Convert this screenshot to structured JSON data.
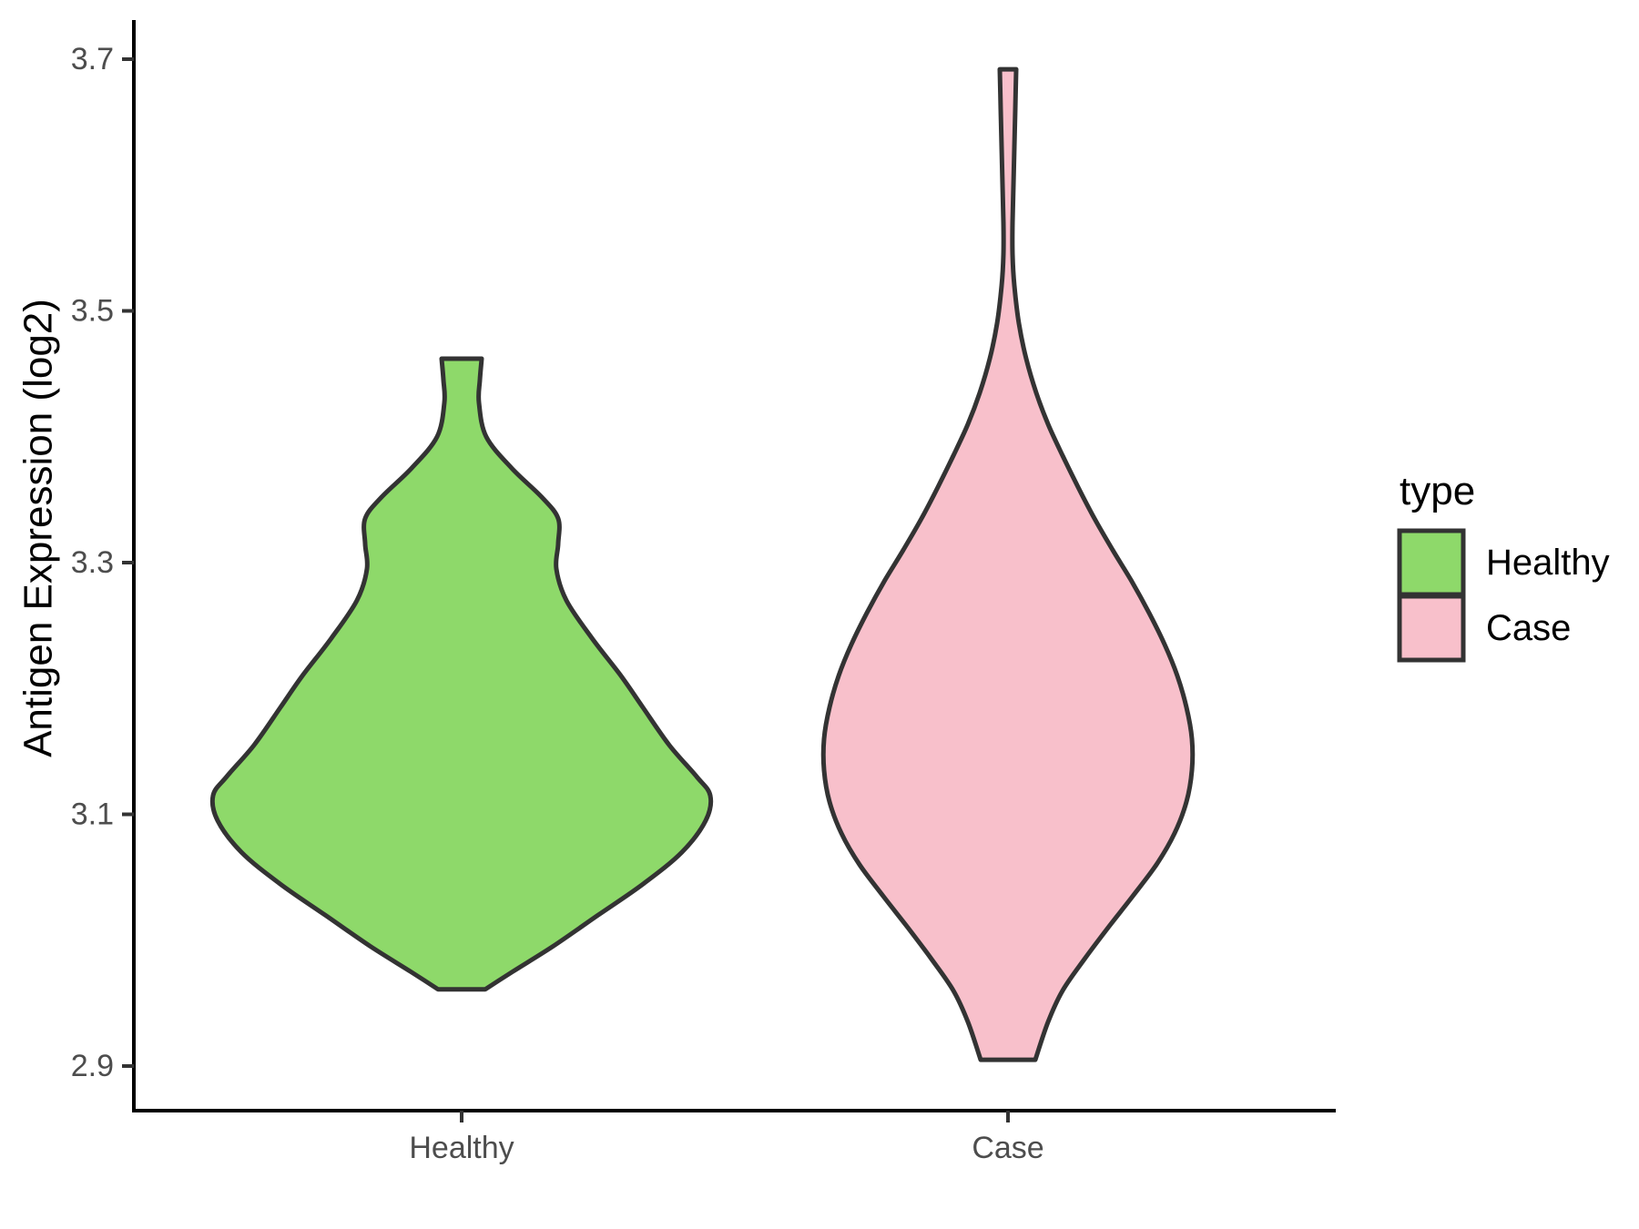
{
  "chart_data": {
    "type": "violin",
    "title": "",
    "xlabel": "",
    "ylabel": "Antigen Expression (log2)",
    "categories": [
      "Healthy",
      "Case"
    ],
    "y_axis": {
      "ticks": [
        3.7,
        3.5,
        3.3,
        3.1,
        2.9
      ],
      "tick_labels": [
        "3.7",
        "3.5",
        "3.3",
        "3.1",
        "2.9"
      ],
      "range_shown": [
        2.86,
        3.72
      ],
      "grid": false
    },
    "legend": {
      "title": "type",
      "position": "right",
      "entries": [
        {
          "label": "Healthy",
          "fill": "#8ED96A"
        },
        {
          "label": "Case",
          "fill": "#F8C0CB"
        }
      ]
    },
    "series": [
      {
        "name": "Healthy",
        "fill": "#8ED96A",
        "min_value": 2.96,
        "max_value": 3.46,
        "widest_at": 3.11,
        "profile_format": "[expression_value_log2, density_halfwidth_px]",
        "profile": [
          [
            3.462,
            22
          ],
          [
            3.445,
            20
          ],
          [
            3.427,
            19
          ],
          [
            3.4,
            27
          ],
          [
            3.375,
            55
          ],
          [
            3.352,
            88
          ],
          [
            3.335,
            106
          ],
          [
            3.315,
            106
          ],
          [
            3.295,
            104
          ],
          [
            3.27,
            115
          ],
          [
            3.24,
            143
          ],
          [
            3.21,
            175
          ],
          [
            3.185,
            199
          ],
          [
            3.155,
            228
          ],
          [
            3.13,
            258
          ],
          [
            3.115,
            273
          ],
          [
            3.095,
            268
          ],
          [
            3.07,
            242
          ],
          [
            3.045,
            200
          ],
          [
            3.02,
            150
          ],
          [
            2.995,
            100
          ],
          [
            2.975,
            56
          ],
          [
            2.961,
            26
          ]
        ]
      },
      {
        "name": "Case",
        "fill": "#F8C0CB",
        "min_value": 2.905,
        "max_value": 3.69,
        "widest_at": 3.15,
        "profile_format": "[expression_value_log2, density_halfwidth_px]",
        "profile": [
          [
            3.692,
            9
          ],
          [
            3.66,
            8
          ],
          [
            3.63,
            7
          ],
          [
            3.6,
            6
          ],
          [
            3.57,
            5
          ],
          [
            3.545,
            5
          ],
          [
            3.52,
            7
          ],
          [
            3.49,
            12
          ],
          [
            3.462,
            20
          ],
          [
            3.435,
            31
          ],
          [
            3.41,
            44
          ],
          [
            3.385,
            60
          ],
          [
            3.36,
            77
          ],
          [
            3.335,
            95
          ],
          [
            3.31,
            115
          ],
          [
            3.285,
            136
          ],
          [
            3.26,
            155
          ],
          [
            3.235,
            172
          ],
          [
            3.21,
            186
          ],
          [
            3.185,
            196
          ],
          [
            3.16,
            202
          ],
          [
            3.135,
            202
          ],
          [
            3.11,
            196
          ],
          [
            3.085,
            183
          ],
          [
            3.06,
            163
          ],
          [
            3.035,
            137
          ],
          [
            3.01,
            110
          ],
          [
            2.985,
            84
          ],
          [
            2.96,
            60
          ],
          [
            2.935,
            44
          ],
          [
            2.905,
            30
          ]
        ]
      }
    ],
    "colors": {
      "background": "#FFFFFF",
      "axis": "#000000",
      "tick": "#333333",
      "tick_label": "#4D4D4D",
      "text": "#000000",
      "violin_outline": "#333333"
    }
  }
}
